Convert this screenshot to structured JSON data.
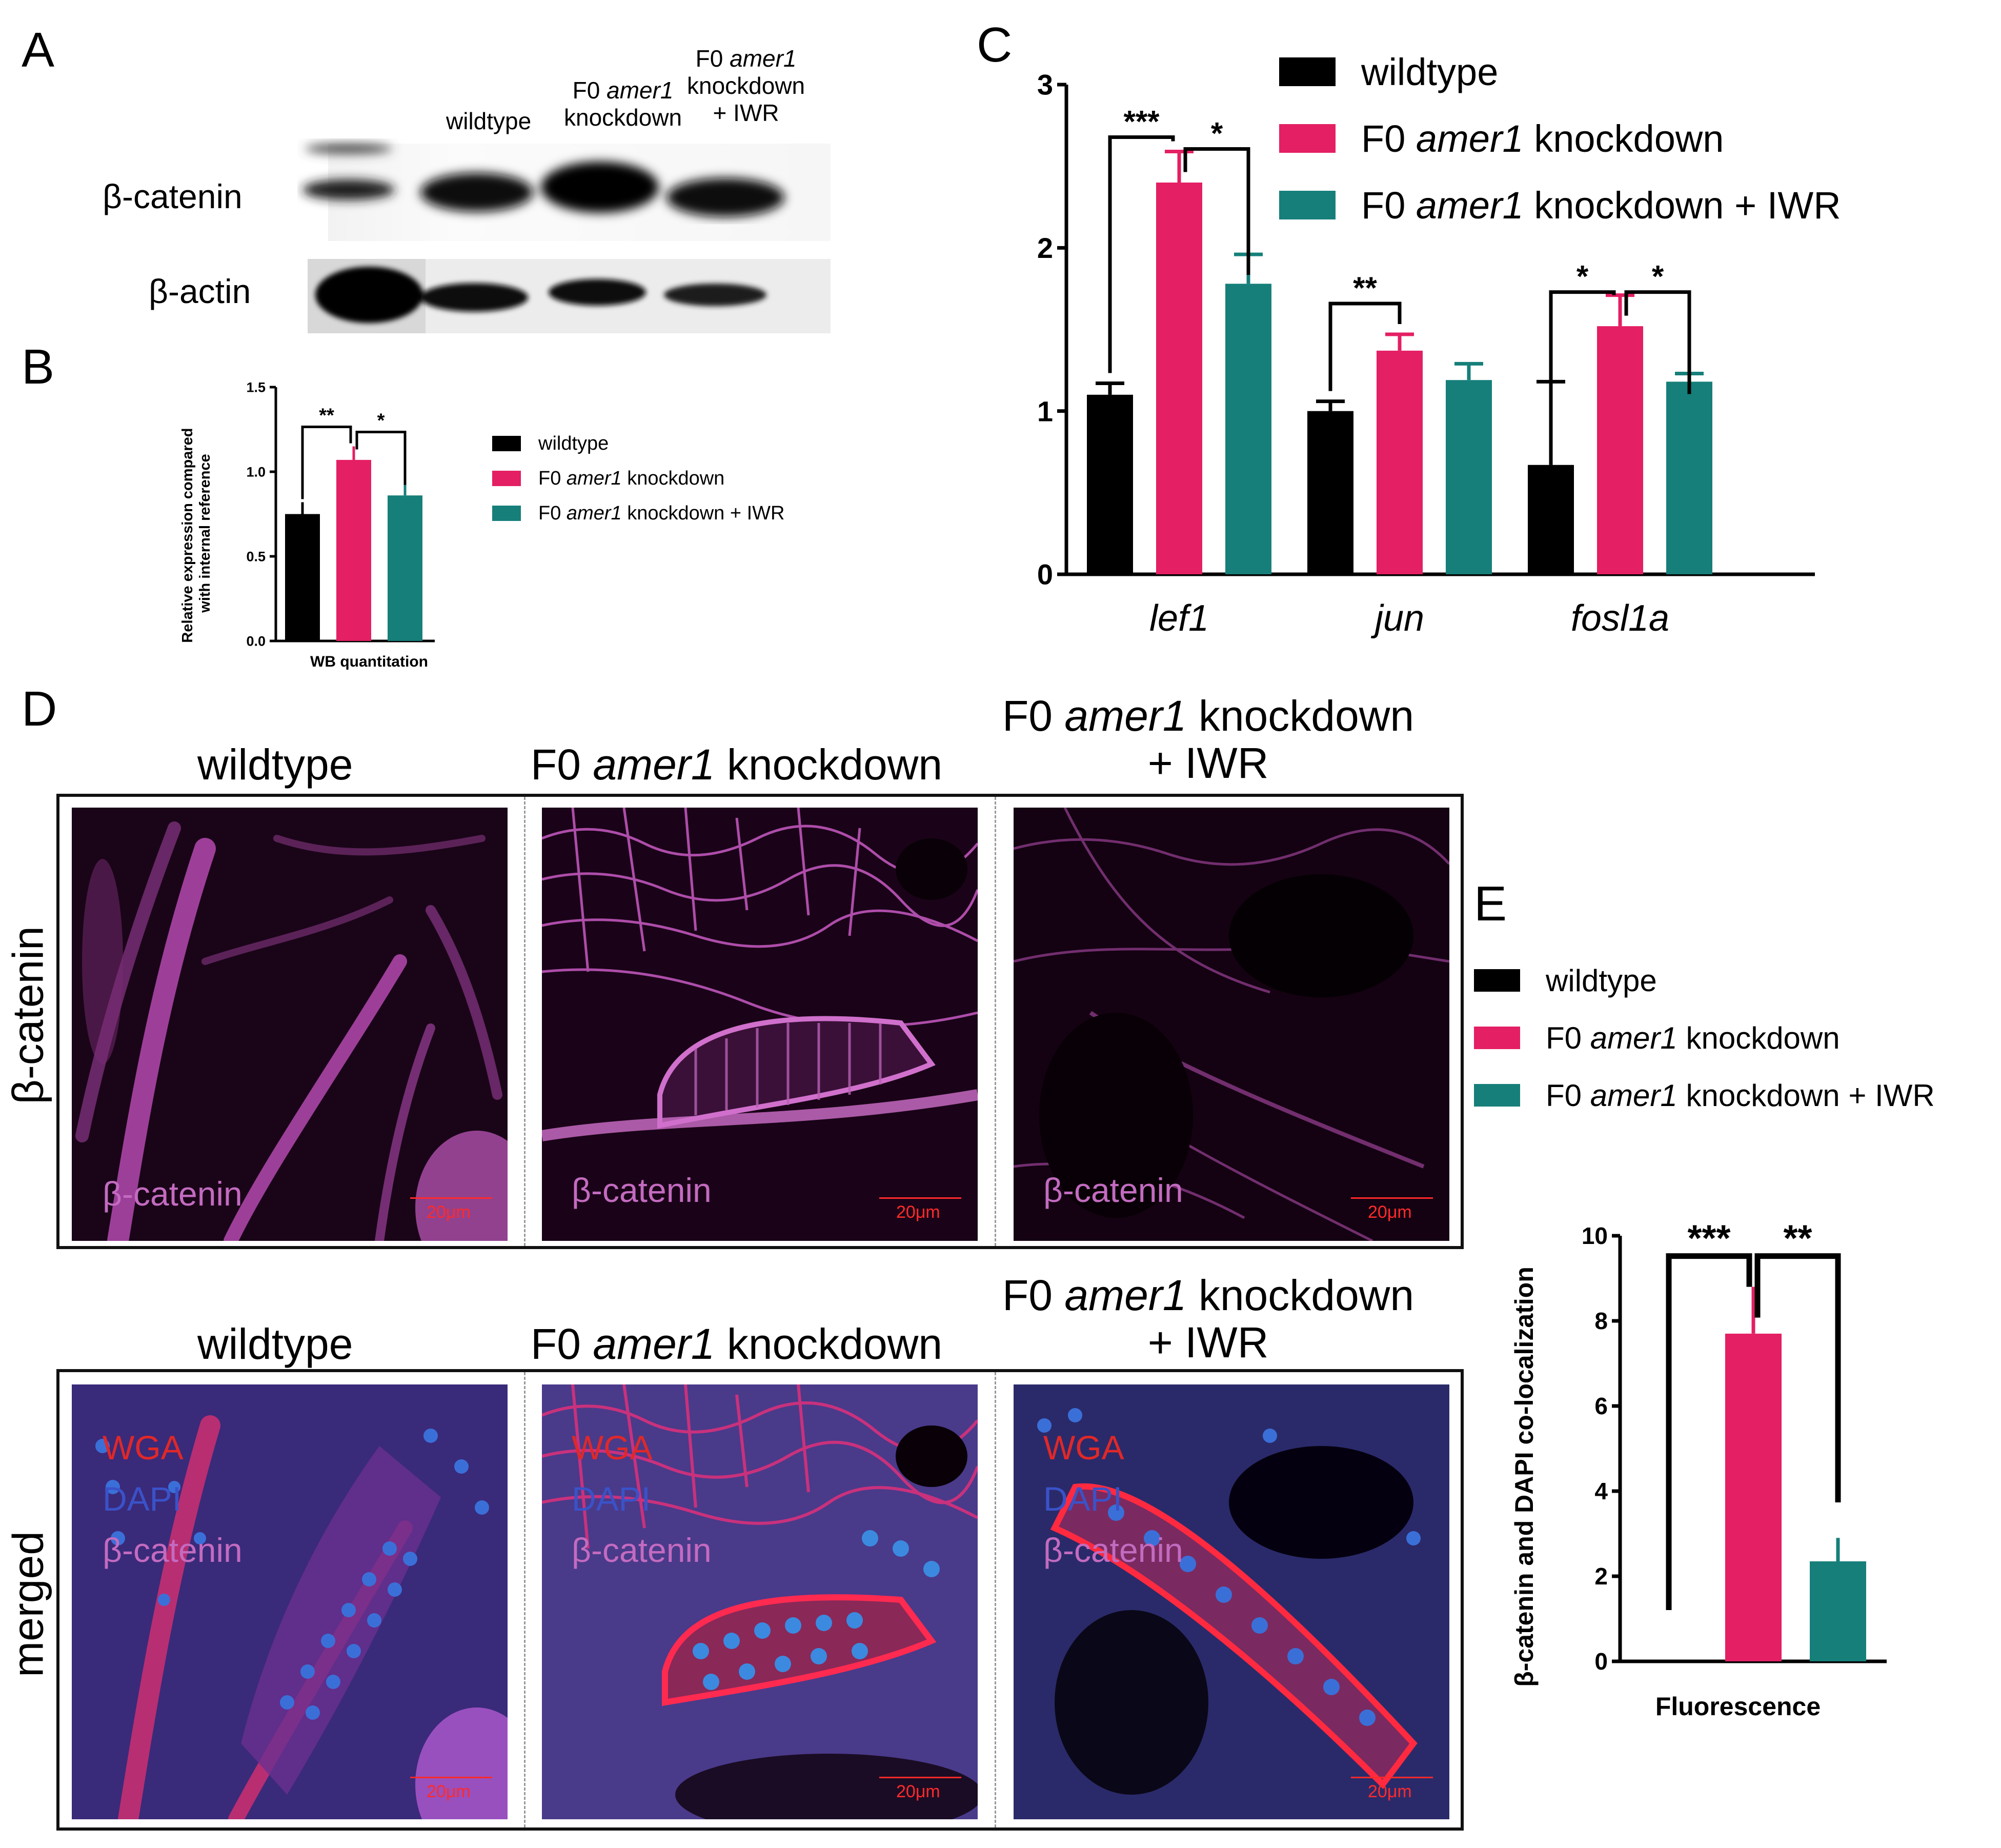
{
  "panels": {
    "a": "A",
    "b": "B",
    "c": "C",
    "d": "D",
    "e": "E"
  },
  "groups": {
    "wt": "wildtype",
    "f0": "F0",
    "gene": "amer1",
    "kd": "knockdown",
    "iwr": "+ IWR"
  },
  "blot": {
    "row1": "β-catenin",
    "row2": "β-actin",
    "head_wt": "wildtype",
    "head_kd_line1": "F0 amer1",
    "head_kd_line2": "knockdown",
    "head_iwr_line1": "F0 amer1",
    "head_iwr_line2": "knockdown",
    "head_iwr_line3": "+ IWR"
  },
  "micro": {
    "row1": "β-catenin",
    "row2": "merged",
    "ch_bcat": "β-catenin",
    "ch_wga": "WGA",
    "ch_dapi": "DAPI",
    "scale": "20μm"
  },
  "colors": {
    "wildtype": "#000000",
    "knockdown": "#e41f64",
    "iwr": "#167f7a"
  },
  "chart_data": [
    {
      "panel": "B",
      "type": "bar",
      "categories": [
        "WB quantitation"
      ],
      "xlabel": "WB quantitation",
      "ylabel": "Relative expression compared with internal reference",
      "ylim": [
        0,
        1.5
      ],
      "yticks": [
        "0.0",
        "0.5",
        "1.0",
        "1.5"
      ],
      "series": [
        {
          "name": "wildtype",
          "values": [
            0.75
          ],
          "errors": [
            0.07
          ]
        },
        {
          "name": "F0 amer1 knockdown",
          "values": [
            1.07
          ],
          "errors": [
            0.08
          ]
        },
        {
          "name": "F0 amer1 knockdown + IWR",
          "values": [
            0.86
          ],
          "errors": [
            0.08
          ]
        }
      ],
      "significance": [
        "**",
        "*"
      ]
    },
    {
      "panel": "C",
      "type": "bar",
      "categories": [
        "lef1",
        "jun",
        "fosl1a"
      ],
      "ylim": [
        0,
        3
      ],
      "yticks": [
        "0",
        "1",
        "2",
        "3"
      ],
      "series": [
        {
          "name": "wildtype",
          "values": [
            1.1,
            1.0,
            0.67
          ],
          "errors": [
            0.07,
            0.06,
            0.51
          ]
        },
        {
          "name": "F0 amer1 knockdown",
          "values": [
            2.4,
            1.37,
            1.52
          ],
          "errors": [
            0.19,
            0.1,
            0.19
          ]
        },
        {
          "name": "F0 amer1 knockdown + IWR",
          "values": [
            1.78,
            1.19,
            1.18
          ],
          "errors": [
            0.18,
            0.1,
            0.05
          ]
        }
      ],
      "significance": [
        [
          "***",
          "*"
        ],
        [
          "**"
        ],
        [
          "*",
          "*"
        ]
      ]
    },
    {
      "panel": "E",
      "type": "bar",
      "categories": [
        "Fluorescence"
      ],
      "xlabel": "Fluorescence",
      "ylabel": "β-catenin and DAPI co-localization",
      "ylim": [
        0,
        10
      ],
      "yticks": [
        "0",
        "2",
        "4",
        "6",
        "8",
        "10"
      ],
      "series": [
        {
          "name": "wildtype",
          "values": [
            0
          ],
          "errors": [
            0
          ]
        },
        {
          "name": "F0 amer1 knockdown",
          "values": [
            7.7
          ],
          "errors": [
            1.1
          ]
        },
        {
          "name": "F0 amer1 knockdown + IWR",
          "values": [
            2.35
          ],
          "errors": [
            0.55
          ]
        }
      ],
      "significance": [
        "***",
        "**"
      ]
    }
  ]
}
